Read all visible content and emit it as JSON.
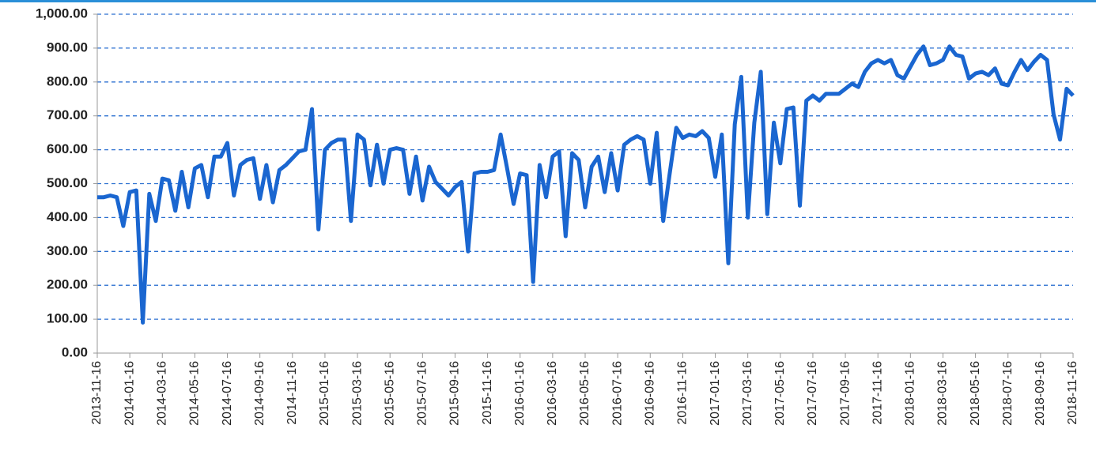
{
  "chart_data": {
    "type": "line",
    "categories": [
      "2013-11-16",
      null,
      null,
      null,
      null,
      "2014-01-16",
      null,
      null,
      null,
      null,
      "2014-03-16",
      null,
      null,
      null,
      null,
      "2014-05-16",
      null,
      null,
      null,
      null,
      "2014-07-16",
      null,
      null,
      null,
      null,
      "2014-09-16",
      null,
      null,
      null,
      null,
      "2014-11-16",
      null,
      null,
      null,
      null,
      "2015-01-16",
      null,
      null,
      null,
      null,
      "2015-03-16",
      null,
      null,
      null,
      null,
      "2015-05-16",
      null,
      null,
      null,
      null,
      "2015-07-16",
      null,
      null,
      null,
      null,
      "2015-09-16",
      null,
      null,
      null,
      null,
      "2015-11-16",
      null,
      null,
      null,
      null,
      "2016-01-16",
      null,
      null,
      null,
      null,
      "2016-03-16",
      null,
      null,
      null,
      null,
      "2016-05-16",
      null,
      null,
      null,
      null,
      "2016-07-16",
      null,
      null,
      null,
      null,
      "2016-09-16",
      null,
      null,
      null,
      null,
      "2016-11-16",
      null,
      null,
      null,
      null,
      "2017-01-16",
      null,
      null,
      null,
      null,
      "2017-03-16",
      null,
      null,
      null,
      null,
      "2017-05-16",
      null,
      null,
      null,
      null,
      "2017-07-16",
      null,
      null,
      null,
      null,
      "2017-09-16",
      null,
      null,
      null,
      null,
      "2017-11-16",
      null,
      null,
      null,
      null,
      "2018-01-16",
      null,
      null,
      null,
      null,
      "2018-03-16",
      null,
      null,
      null,
      null,
      "2018-05-16",
      null,
      null,
      null,
      null,
      "2018-07-16",
      null,
      null,
      null,
      null,
      "2018-09-16",
      null,
      null,
      null,
      null,
      "2018-11-16"
    ],
    "values": [
      460,
      460,
      465,
      460,
      375,
      475,
      480,
      90,
      470,
      390,
      515,
      510,
      420,
      535,
      430,
      545,
      555,
      460,
      580,
      580,
      620,
      465,
      555,
      570,
      575,
      455,
      555,
      445,
      540,
      555,
      575,
      595,
      600,
      720,
      365,
      600,
      620,
      630,
      630,
      390,
      645,
      630,
      495,
      615,
      500,
      600,
      605,
      600,
      470,
      580,
      450,
      550,
      505,
      485,
      465,
      490,
      505,
      300,
      530,
      535,
      535,
      540,
      645,
      545,
      440,
      530,
      525,
      210,
      555,
      460,
      580,
      595,
      345,
      590,
      570,
      430,
      550,
      580,
      475,
      590,
      480,
      615,
      630,
      640,
      630,
      500,
      650,
      390,
      530,
      665,
      635,
      645,
      640,
      655,
      635,
      520,
      645,
      265,
      675,
      815,
      400,
      680,
      830,
      410,
      680,
      560,
      720,
      725,
      435,
      745,
      760,
      745,
      765,
      765,
      765,
      780,
      795,
      785,
      830,
      855,
      865,
      855,
      865,
      820,
      810,
      845,
      880,
      905,
      850,
      855,
      865,
      905,
      880,
      875,
      810,
      825,
      830,
      820,
      840,
      795,
      790,
      830,
      865,
      835,
      860,
      880,
      865,
      705,
      630,
      780,
      760
    ],
    "color": "#1a66d0",
    "ylim": [
      0,
      1000
    ],
    "yticks": [
      {
        "value": 0,
        "label": "0.00"
      },
      {
        "value": 100,
        "label": "100.00"
      },
      {
        "value": 200,
        "label": "200.00"
      },
      {
        "value": 300,
        "label": "300.00"
      },
      {
        "value": 400,
        "label": "400.00"
      },
      {
        "value": 500,
        "label": "500.00"
      },
      {
        "value": 600,
        "label": "600.00"
      },
      {
        "value": 700,
        "label": "700.00"
      },
      {
        "value": 800,
        "label": "800.00"
      },
      {
        "value": 900,
        "label": "900.00"
      },
      {
        "value": 1000,
        "label": "1,000.00"
      }
    ],
    "grid": true
  }
}
